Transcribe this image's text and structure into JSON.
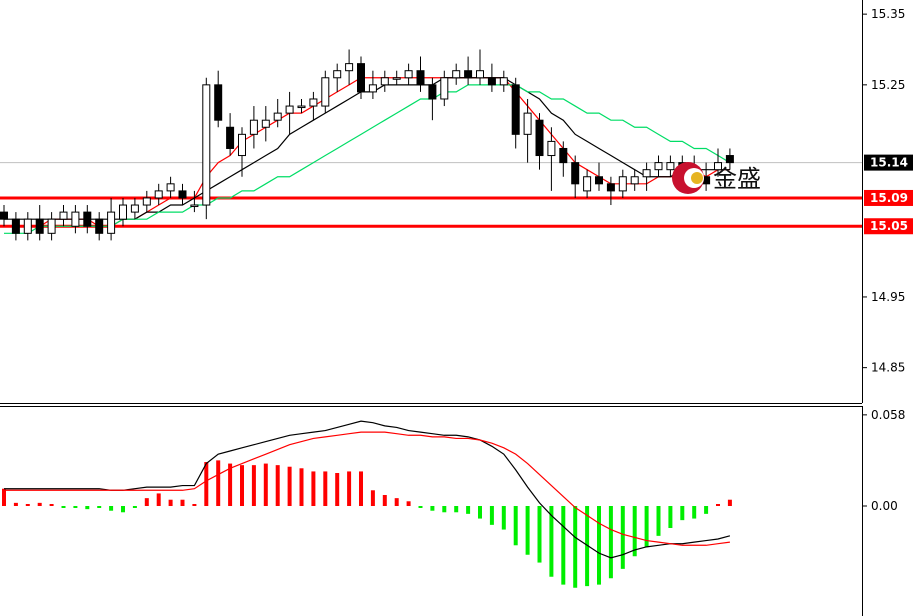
{
  "chart_data": [
    {
      "type": "candlestick",
      "title": "",
      "y_ticks": [
        "15.35",
        "15.25",
        "14.95",
        "14.85"
      ],
      "ylim": [
        14.8,
        15.37
      ],
      "current_price": {
        "value": 15.14,
        "label": "15.14"
      },
      "horizontal_levels": [
        {
          "value": 15.09,
          "label": "15.09",
          "color": "#ff0000"
        },
        {
          "value": 15.05,
          "label": "15.05",
          "color": "#ff0000"
        }
      ],
      "ohlc": [
        [
          15.07,
          15.08,
          15.05,
          15.06
        ],
        [
          15.06,
          15.07,
          15.03,
          15.04
        ],
        [
          15.04,
          15.07,
          15.03,
          15.06
        ],
        [
          15.06,
          15.08,
          15.03,
          15.04
        ],
        [
          15.04,
          15.07,
          15.03,
          15.06
        ],
        [
          15.06,
          15.08,
          15.05,
          15.07
        ],
        [
          15.05,
          15.08,
          15.04,
          15.07
        ],
        [
          15.07,
          15.08,
          15.04,
          15.05
        ],
        [
          15.06,
          15.07,
          15.03,
          15.04
        ],
        [
          15.04,
          15.09,
          15.03,
          15.07
        ],
        [
          15.06,
          15.09,
          15.05,
          15.08
        ],
        [
          15.07,
          15.09,
          15.06,
          15.08
        ],
        [
          15.08,
          15.1,
          15.07,
          15.09
        ],
        [
          15.09,
          15.11,
          15.08,
          15.1
        ],
        [
          15.1,
          15.12,
          15.09,
          15.11
        ],
        [
          15.1,
          15.11,
          15.08,
          15.09
        ],
        [
          15.08,
          15.1,
          15.07,
          15.08
        ],
        [
          15.08,
          15.26,
          15.06,
          15.25
        ],
        [
          15.25,
          15.27,
          15.19,
          15.2
        ],
        [
          15.19,
          15.21,
          15.15,
          15.16
        ],
        [
          15.15,
          15.19,
          15.12,
          15.18
        ],
        [
          15.18,
          15.22,
          15.16,
          15.2
        ],
        [
          15.19,
          15.22,
          15.17,
          15.2
        ],
        [
          15.2,
          15.23,
          15.19,
          15.21
        ],
        [
          15.21,
          15.24,
          15.18,
          15.22
        ],
        [
          15.22,
          15.23,
          15.21,
          15.22
        ],
        [
          15.22,
          15.24,
          15.2,
          15.23
        ],
        [
          15.22,
          15.27,
          15.21,
          15.26
        ],
        [
          15.26,
          15.28,
          15.24,
          15.27
        ],
        [
          15.27,
          15.3,
          15.25,
          15.28
        ],
        [
          15.28,
          15.29,
          15.23,
          15.24
        ],
        [
          15.24,
          15.27,
          15.23,
          15.25
        ],
        [
          15.25,
          15.27,
          15.24,
          15.26
        ],
        [
          15.26,
          15.27,
          15.25,
          15.26
        ],
        [
          15.26,
          15.28,
          15.25,
          15.27
        ],
        [
          15.27,
          15.29,
          15.24,
          15.25
        ],
        [
          15.25,
          15.26,
          15.2,
          15.23
        ],
        [
          15.23,
          15.27,
          15.22,
          15.26
        ],
        [
          15.26,
          15.28,
          15.25,
          15.27
        ],
        [
          15.27,
          15.29,
          15.25,
          15.26
        ],
        [
          15.26,
          15.3,
          15.25,
          15.27
        ],
        [
          15.26,
          15.28,
          15.24,
          15.25
        ],
        [
          15.25,
          15.27,
          15.24,
          15.26
        ],
        [
          15.25,
          15.26,
          15.16,
          15.18
        ],
        [
          15.18,
          15.23,
          15.14,
          15.21
        ],
        [
          15.2,
          15.21,
          15.13,
          15.15
        ],
        [
          15.15,
          15.19,
          15.1,
          15.17
        ],
        [
          15.16,
          15.17,
          15.12,
          15.14
        ],
        [
          15.14,
          15.15,
          15.09,
          15.11
        ],
        [
          15.1,
          15.13,
          15.09,
          15.12
        ],
        [
          15.12,
          15.14,
          15.1,
          15.11
        ],
        [
          15.11,
          15.12,
          15.08,
          15.1
        ],
        [
          15.1,
          15.13,
          15.09,
          15.12
        ],
        [
          15.11,
          15.13,
          15.1,
          15.12
        ],
        [
          15.12,
          15.14,
          15.1,
          15.13
        ],
        [
          15.13,
          15.15,
          15.12,
          15.14
        ],
        [
          15.13,
          15.15,
          15.12,
          15.14
        ],
        [
          15.14,
          15.15,
          15.11,
          15.12
        ],
        [
          15.12,
          15.15,
          15.11,
          15.13
        ],
        [
          15.12,
          15.14,
          15.1,
          15.11
        ],
        [
          15.13,
          15.16,
          15.12,
          15.14
        ],
        [
          15.15,
          15.16,
          15.13,
          15.14
        ]
      ],
      "ma_series": [
        {
          "color": "#ff0000",
          "values": [
            15.05,
            15.05,
            15.05,
            15.05,
            15.06,
            15.06,
            15.06,
            15.06,
            15.05,
            15.05,
            15.06,
            15.06,
            15.07,
            15.08,
            15.09,
            15.09,
            15.09,
            15.12,
            15.14,
            15.15,
            15.17,
            15.18,
            15.19,
            15.2,
            15.21,
            15.21,
            15.22,
            15.23,
            15.24,
            15.25,
            15.26,
            15.26,
            15.26,
            15.26,
            15.26,
            15.26,
            15.26,
            15.26,
            15.26,
            15.26,
            15.26,
            15.26,
            15.26,
            15.24,
            15.22,
            15.2,
            15.18,
            15.16,
            15.14,
            15.13,
            15.12,
            15.11,
            15.11,
            15.11,
            15.11,
            15.12,
            15.12,
            15.12,
            15.13,
            15.12,
            15.13,
            15.13
          ]
        },
        {
          "color": "#000000",
          "values": [
            15.06,
            15.06,
            15.06,
            15.06,
            15.06,
            15.06,
            15.06,
            15.06,
            15.06,
            15.06,
            15.06,
            15.06,
            15.07,
            15.07,
            15.08,
            15.08,
            15.09,
            15.1,
            15.11,
            15.12,
            15.13,
            15.14,
            15.15,
            15.16,
            15.18,
            15.19,
            15.2,
            15.21,
            15.22,
            15.23,
            15.24,
            15.24,
            15.25,
            15.25,
            15.25,
            15.25,
            15.25,
            15.26,
            15.26,
            15.26,
            15.26,
            15.26,
            15.26,
            15.25,
            15.24,
            15.23,
            15.21,
            15.2,
            15.18,
            15.17,
            15.16,
            15.15,
            15.14,
            15.13,
            15.12,
            15.12,
            15.12,
            15.13,
            15.13,
            15.13,
            15.13,
            15.13
          ]
        },
        {
          "color": "#00dd66",
          "values": [
            15.04,
            15.04,
            15.04,
            15.05,
            15.05,
            15.05,
            15.05,
            15.05,
            15.05,
            15.05,
            15.06,
            15.06,
            15.06,
            15.07,
            15.07,
            15.07,
            15.08,
            15.08,
            15.09,
            15.09,
            15.1,
            15.1,
            15.11,
            15.12,
            15.12,
            15.13,
            15.14,
            15.15,
            15.16,
            15.17,
            15.18,
            15.19,
            15.2,
            15.21,
            15.22,
            15.23,
            15.23,
            15.24,
            15.24,
            15.25,
            15.25,
            15.25,
            15.25,
            15.25,
            15.24,
            15.24,
            15.23,
            15.23,
            15.22,
            15.21,
            15.21,
            15.2,
            15.2,
            15.19,
            15.19,
            15.18,
            15.17,
            15.17,
            15.16,
            15.16,
            15.15,
            15.14
          ]
        }
      ]
    },
    {
      "type": "bar",
      "title": "",
      "y_ticks": [
        "0.058",
        "0.00"
      ],
      "ylim": [
        -0.07,
        0.063
      ],
      "histogram": [
        0.011,
        0.002,
        0.001,
        0.002,
        0.001,
        -0.001,
        -0.001,
        -0.002,
        -0.001,
        -0.003,
        -0.004,
        -0.001,
        0.005,
        0.008,
        0.004,
        0.004,
        0.001,
        0.028,
        0.029,
        0.027,
        0.026,
        0.026,
        0.027,
        0.026,
        0.025,
        0.024,
        0.022,
        0.022,
        0.021,
        0.022,
        0.022,
        0.01,
        0.007,
        0.005,
        0.003,
        -0.001,
        -0.003,
        -0.004,
        -0.004,
        -0.005,
        -0.008,
        -0.012,
        -0.015,
        -0.025,
        -0.031,
        -0.036,
        -0.045,
        -0.05,
        -0.052,
        -0.051,
        -0.05,
        -0.046,
        -0.04,
        -0.032,
        -0.026,
        -0.019,
        -0.014,
        -0.009,
        -0.008,
        -0.005,
        0.001,
        0.004
      ],
      "lines": [
        {
          "color": "#000000",
          "values": [
            0.011,
            0.011,
            0.011,
            0.011,
            0.011,
            0.011,
            0.011,
            0.011,
            0.011,
            0.01,
            0.01,
            0.011,
            0.012,
            0.012,
            0.012,
            0.013,
            0.013,
            0.027,
            0.033,
            0.035,
            0.037,
            0.039,
            0.041,
            0.043,
            0.045,
            0.046,
            0.047,
            0.048,
            0.05,
            0.052,
            0.054,
            0.053,
            0.051,
            0.05,
            0.048,
            0.047,
            0.046,
            0.045,
            0.045,
            0.044,
            0.042,
            0.038,
            0.033,
            0.023,
            0.012,
            0.002,
            -0.006,
            -0.013,
            -0.02,
            -0.025,
            -0.03,
            -0.033,
            -0.031,
            -0.028,
            -0.026,
            -0.025,
            -0.024,
            -0.024,
            -0.023,
            -0.022,
            -0.021,
            -0.019
          ]
        },
        {
          "color": "#ff0000",
          "values": [
            0.01,
            0.01,
            0.01,
            0.01,
            0.01,
            0.01,
            0.01,
            0.01,
            0.01,
            0.01,
            0.01,
            0.01,
            0.01,
            0.01,
            0.01,
            0.01,
            0.011,
            0.016,
            0.02,
            0.024,
            0.027,
            0.03,
            0.033,
            0.036,
            0.039,
            0.041,
            0.043,
            0.044,
            0.045,
            0.046,
            0.047,
            0.047,
            0.047,
            0.046,
            0.045,
            0.045,
            0.044,
            0.044,
            0.043,
            0.043,
            0.042,
            0.04,
            0.037,
            0.033,
            0.027,
            0.02,
            0.013,
            0.006,
            -0.001,
            -0.006,
            -0.011,
            -0.015,
            -0.018,
            -0.02,
            -0.022,
            -0.023,
            -0.024,
            -0.025,
            -0.025,
            -0.025,
            -0.024,
            -0.023
          ]
        }
      ]
    }
  ],
  "watermark": {
    "text": "金盛"
  }
}
